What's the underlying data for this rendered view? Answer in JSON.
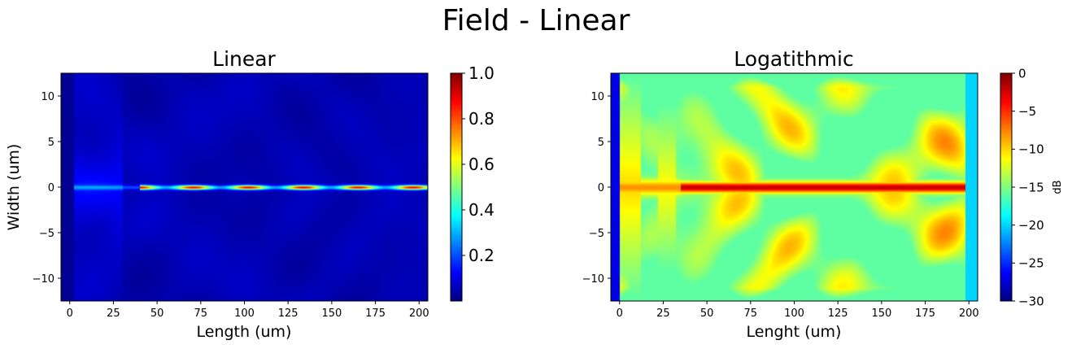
{
  "suptitle": "Field - Linear",
  "colors": {
    "jet": [
      "#00007f",
      "#0000ff",
      "#0080ff",
      "#00ffff",
      "#80ff80",
      "#ffff00",
      "#ff8000",
      "#ff0000",
      "#7f0000"
    ]
  },
  "chart_data": [
    {
      "type": "heatmap",
      "title": "Linear",
      "xlabel": "Length (um)",
      "ylabel": "Width (um)",
      "xlim": [
        -5,
        205
      ],
      "ylim": [
        -12.5,
        12.5
      ],
      "xticks": [
        "0",
        "25",
        "50",
        "75",
        "100",
        "125",
        "150",
        "175",
        "200"
      ],
      "yticks": [
        "−10",
        "−5",
        "0",
        "5",
        "10"
      ],
      "colorbar": {
        "label": "",
        "range": [
          0.0,
          1.0
        ],
        "ticks": [
          "0.2",
          "0.4",
          "0.6",
          "0.8",
          "1.0"
        ]
      },
      "colormap": "jet",
      "description_values": {
        "background_level": 0.03,
        "core_level_range": [
          0.4,
          1.0
        ],
        "core_y": 0
      }
    },
    {
      "type": "heatmap",
      "title": "Logatithmic",
      "xlabel": "Lenght (um)",
      "ylabel": "",
      "xlim": [
        -5,
        205
      ],
      "ylim": [
        -12.5,
        12.5
      ],
      "xticks": [
        "0",
        "25",
        "50",
        "75",
        "100",
        "125",
        "150",
        "175",
        "200"
      ],
      "yticks": [
        "−10",
        "−5",
        "0",
        "5",
        "10"
      ],
      "colorbar": {
        "label": "dB",
        "range": [
          -30,
          0
        ],
        "ticks": [
          "−30",
          "−25",
          "−20",
          "−15",
          "−10",
          "−5",
          "0"
        ]
      },
      "colormap": "jet",
      "description_values": {
        "background_level_db": -14,
        "core_level_db": -1,
        "core_y": 0
      }
    }
  ]
}
